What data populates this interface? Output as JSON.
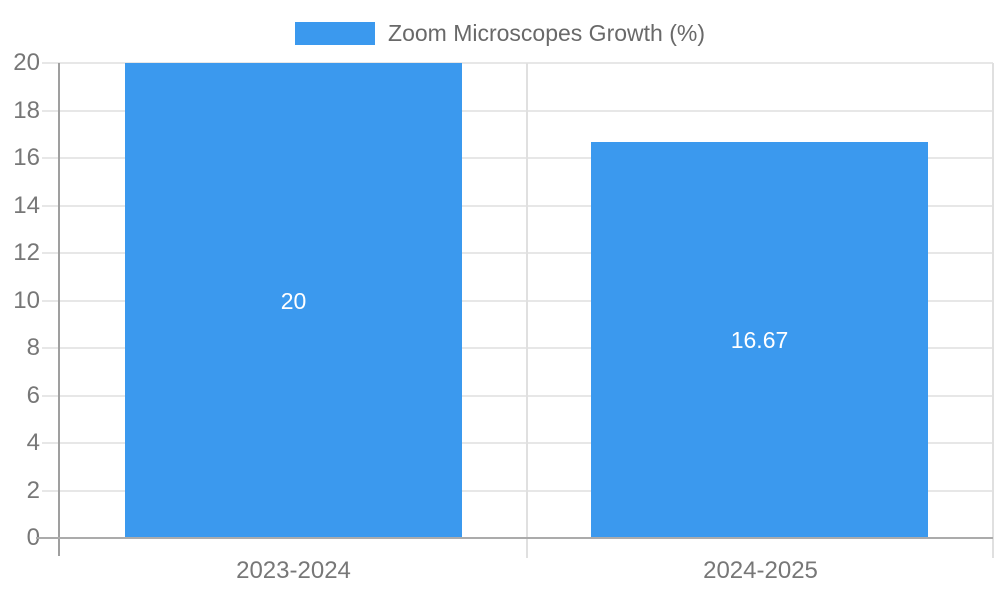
{
  "legend": {
    "label": "Zoom Microscopes Growth (%)"
  },
  "colors": {
    "bar": "#3B99EE",
    "grid_horizontal": "#e7e7e7",
    "grid_vertical": "#e0e0e0",
    "axis_line": "#9f9f9f",
    "baseline": "#ababab",
    "tick_text": "#777777",
    "legend_text": "#696969",
    "bar_label_text": "#ffffff",
    "background": "#ffffff"
  },
  "chart_data": {
    "type": "bar",
    "title": "Zoom Microscopes Growth (%)",
    "categories": [
      "2023-2024",
      "2024-2025"
    ],
    "values": [
      20,
      16.67
    ],
    "value_labels": [
      "20",
      "16.67"
    ],
    "yticks": [
      0,
      2,
      4,
      6,
      8,
      10,
      12,
      14,
      16,
      18,
      20
    ],
    "ylim": [
      0,
      20
    ],
    "xlabel": "",
    "ylabel": "",
    "grid": "on",
    "legend_position": "top-center"
  }
}
